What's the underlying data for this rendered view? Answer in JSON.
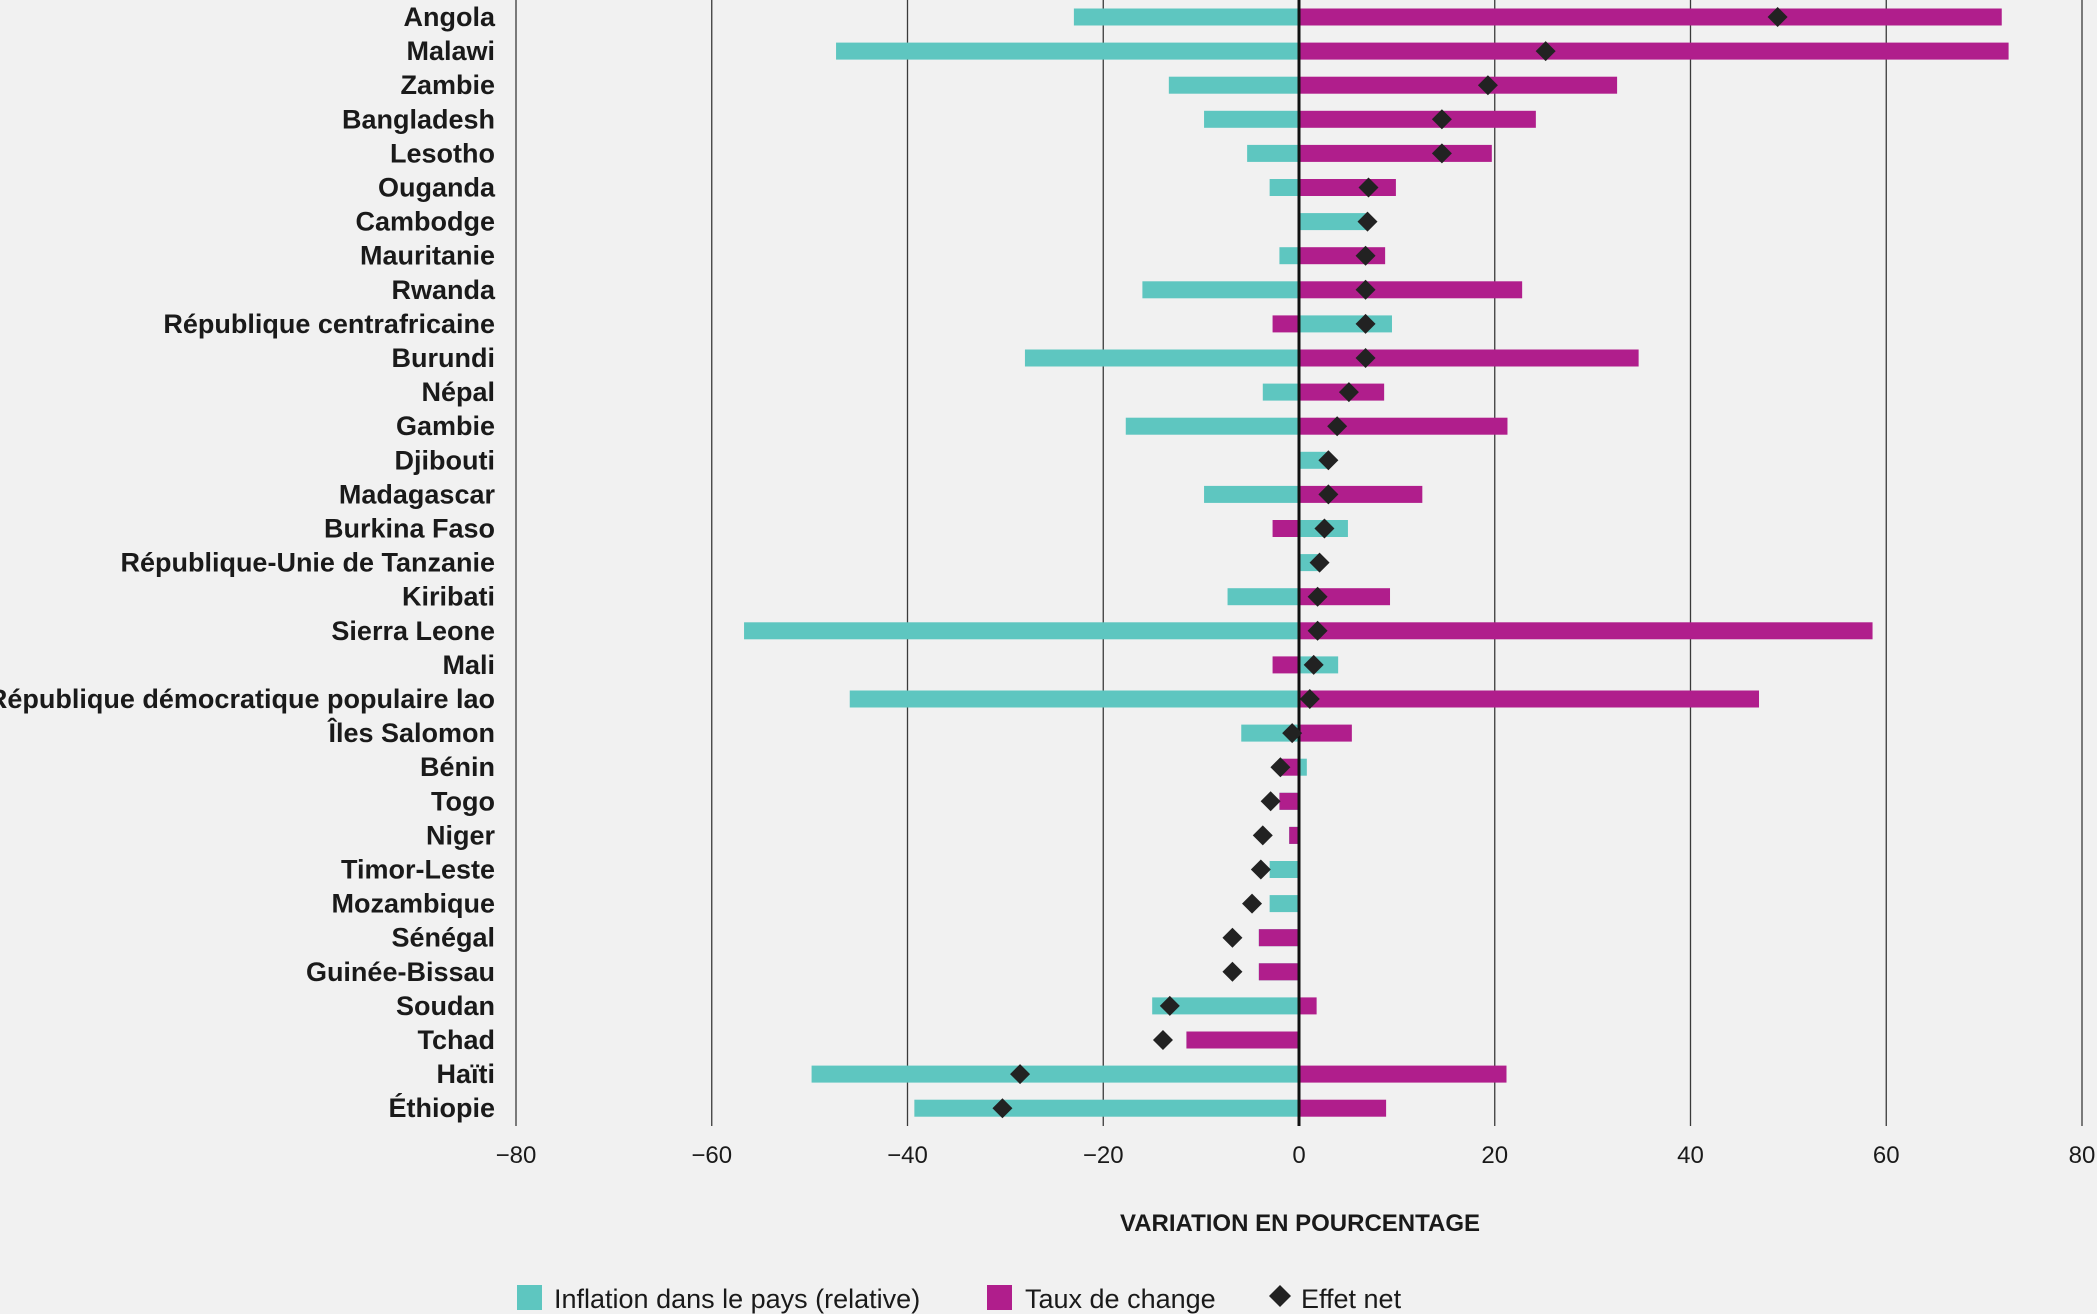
{
  "chart_data": {
    "type": "bar",
    "orientation": "horizontal",
    "xlabel": "VARIATION EN POURCENTAGE",
    "xlim": [
      -80,
      80
    ],
    "xticks": [
      -80,
      -60,
      -40,
      -20,
      0,
      20,
      40,
      60,
      80
    ],
    "xtick_labels": [
      "−80",
      "−60",
      "−40",
      "−20",
      "0",
      "20",
      "40",
      "60",
      "80"
    ],
    "grid": true,
    "legend_position": "bottom",
    "categories": [
      "Angola",
      "Malawi",
      "Zambie",
      "Bangladesh",
      "Lesotho",
      "Ouganda",
      "Cambodge",
      "Mauritanie",
      "Rwanda",
      "République centrafricaine",
      "Burundi",
      "Népal",
      "Gambie",
      "Djibouti",
      "Madagascar",
      "Burkina Faso",
      "République-Unie de Tanzanie",
      "Kiribati",
      "Sierra Leone",
      "Mali",
      "République démocratique populaire lao",
      "Îles Salomon",
      "Bénin",
      "Togo",
      "Niger",
      "Timor-Leste",
      "Mozambique",
      "Sénégal",
      "Guinée-Bissau",
      "Soudan",
      "Tchad",
      "Haïti",
      "Éthiopie"
    ],
    "series": [
      {
        "name": "Inflation dans le pays (relative)",
        "color": "#5ec6c0",
        "values": [
          -23,
          -47.3,
          -13.3,
          -9.7,
          -5.3,
          -3,
          7,
          -2,
          -16,
          9.5,
          -28,
          -3.7,
          -17.7,
          3,
          -9.7,
          5,
          2,
          -7.3,
          -56.7,
          4,
          -45.9,
          -5.9,
          0.8,
          -2,
          -1,
          -3,
          -3,
          -4.1,
          -4.1,
          -15,
          -11.5,
          -49.8,
          -39.3
        ]
      },
      {
        "name": "Taux de change",
        "color": "#b01e8c",
        "values": [
          71.8,
          72.5,
          32.5,
          24.2,
          19.7,
          9.9,
          0,
          8.8,
          22.8,
          -2.7,
          34.7,
          8.7,
          21.3,
          0,
          12.6,
          -2.7,
          0,
          9.3,
          58.6,
          -2.7,
          47,
          5.4,
          -2,
          -2,
          -1,
          0,
          0,
          -4.1,
          -4.1,
          1.8,
          -11.5,
          21.2,
          8.9
        ]
      },
      {
        "name": "Effet net",
        "color": "#222222",
        "values": [
          48.9,
          25.2,
          19.3,
          14.6,
          14.6,
          7.1,
          7,
          6.8,
          6.8,
          6.8,
          6.8,
          5.1,
          3.9,
          3,
          3,
          2.6,
          2.1,
          1.9,
          1.9,
          1.5,
          1.1,
          -0.7,
          -1.9,
          -2.9,
          -3.7,
          -3.9,
          -4.8,
          -6.8,
          -6.8,
          -13.2,
          -13.9,
          -28.5,
          -30.3
        ]
      }
    ]
  }
}
